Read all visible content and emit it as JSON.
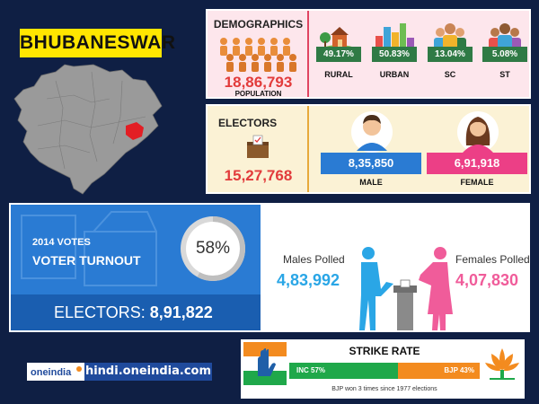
{
  "city": "BHUBANESWAR",
  "demographics": {
    "title": "DEMOGRAPHICS",
    "population": "18,86,793",
    "population_label": "POPULATION",
    "categories": [
      {
        "label": "RURAL",
        "pct": "49.17%",
        "color": "#2f7a45",
        "icon": "farm-icon"
      },
      {
        "label": "URBAN",
        "pct": "50.83%",
        "color": "#2f7a45",
        "icon": "city-icon"
      },
      {
        "label": "SC",
        "pct": "13.04%",
        "color": "#2f7a45",
        "icon": "people-group-icon"
      },
      {
        "label": "ST",
        "pct": "5.08%",
        "color": "#2f7a45",
        "icon": "people-group-icon"
      }
    ]
  },
  "electors": {
    "title": "ELECTORS",
    "total": "15,27,768",
    "male": {
      "value": "8,35,850",
      "label": "MALE",
      "color": "#2a7bd3"
    },
    "female": {
      "value": "6,91,918",
      "label": "FEMALE",
      "color": "#ec3f86"
    }
  },
  "turnout": {
    "year_label": "2014 VOTES",
    "title": "VOTER TURNOUT",
    "percent": "58%",
    "percent_value": 58,
    "electors_label": "ELECTORS:",
    "electors_value": "8,91,822",
    "males_polled_label": "Males Polled",
    "males_polled": "4,83,992",
    "females_polled_label": "Females Polled",
    "females_polled": "4,07,830"
  },
  "footer": {
    "logo_text": "oneindia",
    "site": "hindi.oneindia.com"
  },
  "strike_rate": {
    "title": "STRIKE RATE",
    "inc_label": "INC 57%",
    "inc_value": 57,
    "bjp_label": "BJP 43%",
    "bjp_value": 43,
    "note": "BJP won 3 times since 1977 elections"
  }
}
